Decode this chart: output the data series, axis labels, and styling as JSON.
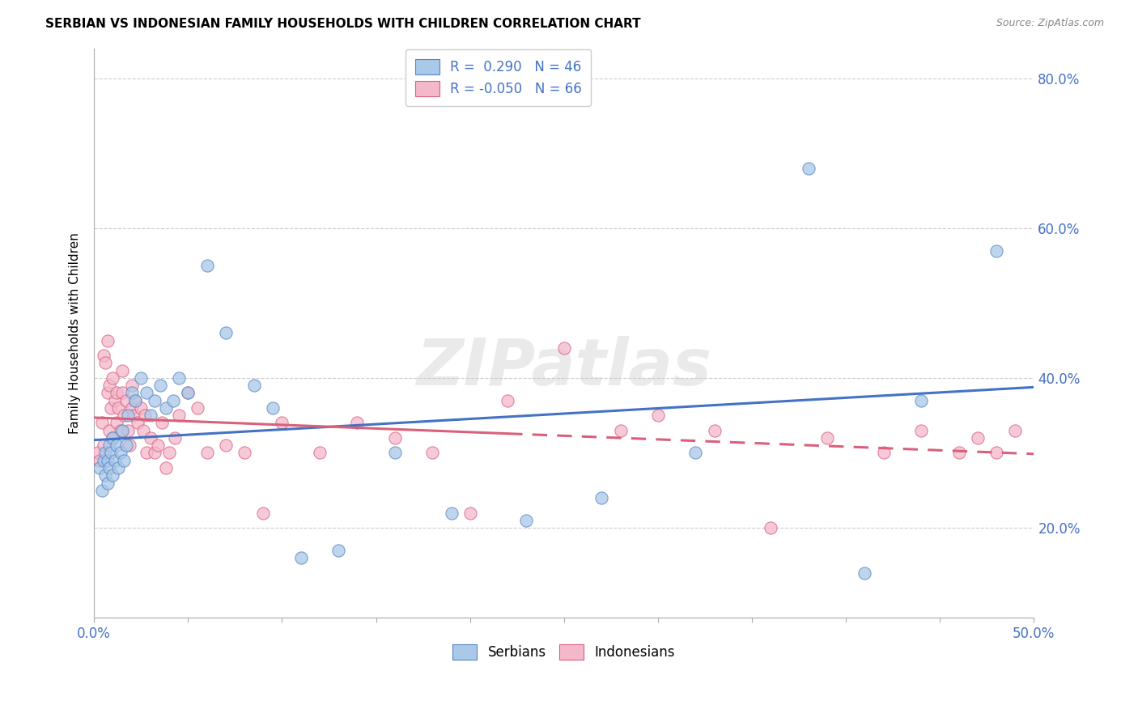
{
  "title": "SERBIAN VS INDONESIAN FAMILY HOUSEHOLDS WITH CHILDREN CORRELATION CHART",
  "source": "Source: ZipAtlas.com",
  "ylabel": "Family Households with Children",
  "xlim": [
    0.0,
    0.5
  ],
  "ylim": [
    0.08,
    0.84
  ],
  "xticks": [
    0.0,
    0.05,
    0.1,
    0.15,
    0.2,
    0.25,
    0.3,
    0.35,
    0.4,
    0.45,
    0.5
  ],
  "yticks": [
    0.2,
    0.4,
    0.6,
    0.8
  ],
  "serbian_R": 0.29,
  "serbian_N": 46,
  "indonesian_R": -0.05,
  "indonesian_N": 66,
  "serbian_color": "#aac8e8",
  "indonesian_color": "#f4b8cb",
  "serbian_edge_color": "#5585c5",
  "indonesian_edge_color": "#d9607a",
  "serbian_line_color": "#4472c4",
  "indonesian_line_color": "#d9607a",
  "watermark": "ZIPatlas",
  "serbian_x": [
    0.003,
    0.004,
    0.005,
    0.006,
    0.006,
    0.007,
    0.007,
    0.008,
    0.008,
    0.009,
    0.01,
    0.01,
    0.011,
    0.012,
    0.013,
    0.014,
    0.015,
    0.016,
    0.017,
    0.018,
    0.02,
    0.022,
    0.025,
    0.028,
    0.03,
    0.032,
    0.035,
    0.038,
    0.042,
    0.045,
    0.05,
    0.06,
    0.07,
    0.085,
    0.095,
    0.11,
    0.13,
    0.16,
    0.19,
    0.23,
    0.27,
    0.32,
    0.38,
    0.41,
    0.44,
    0.48
  ],
  "serbian_y": [
    0.28,
    0.25,
    0.29,
    0.27,
    0.3,
    0.29,
    0.26,
    0.28,
    0.31,
    0.3,
    0.27,
    0.32,
    0.29,
    0.31,
    0.28,
    0.3,
    0.33,
    0.29,
    0.31,
    0.35,
    0.38,
    0.37,
    0.4,
    0.38,
    0.35,
    0.37,
    0.39,
    0.36,
    0.37,
    0.4,
    0.38,
    0.55,
    0.46,
    0.39,
    0.36,
    0.16,
    0.17,
    0.3,
    0.22,
    0.21,
    0.24,
    0.3,
    0.68,
    0.14,
    0.37,
    0.57
  ],
  "indonesian_x": [
    0.002,
    0.003,
    0.004,
    0.005,
    0.005,
    0.006,
    0.007,
    0.007,
    0.008,
    0.008,
    0.009,
    0.01,
    0.01,
    0.011,
    0.012,
    0.012,
    0.013,
    0.014,
    0.015,
    0.015,
    0.016,
    0.017,
    0.018,
    0.019,
    0.02,
    0.02,
    0.021,
    0.022,
    0.023,
    0.025,
    0.026,
    0.027,
    0.028,
    0.03,
    0.032,
    0.034,
    0.036,
    0.038,
    0.04,
    0.043,
    0.045,
    0.05,
    0.055,
    0.06,
    0.07,
    0.08,
    0.09,
    0.1,
    0.12,
    0.14,
    0.16,
    0.18,
    0.2,
    0.22,
    0.25,
    0.28,
    0.3,
    0.33,
    0.36,
    0.39,
    0.42,
    0.44,
    0.46,
    0.47,
    0.48,
    0.49
  ],
  "indonesian_y": [
    0.3,
    0.29,
    0.34,
    0.31,
    0.43,
    0.42,
    0.45,
    0.38,
    0.39,
    0.33,
    0.36,
    0.32,
    0.4,
    0.37,
    0.34,
    0.38,
    0.36,
    0.33,
    0.38,
    0.41,
    0.35,
    0.37,
    0.33,
    0.31,
    0.36,
    0.39,
    0.35,
    0.37,
    0.34,
    0.36,
    0.33,
    0.35,
    0.3,
    0.32,
    0.3,
    0.31,
    0.34,
    0.28,
    0.3,
    0.32,
    0.35,
    0.38,
    0.36,
    0.3,
    0.31,
    0.3,
    0.22,
    0.34,
    0.3,
    0.34,
    0.32,
    0.3,
    0.22,
    0.37,
    0.44,
    0.33,
    0.35,
    0.33,
    0.2,
    0.32,
    0.3,
    0.33,
    0.3,
    0.32,
    0.3,
    0.33
  ]
}
